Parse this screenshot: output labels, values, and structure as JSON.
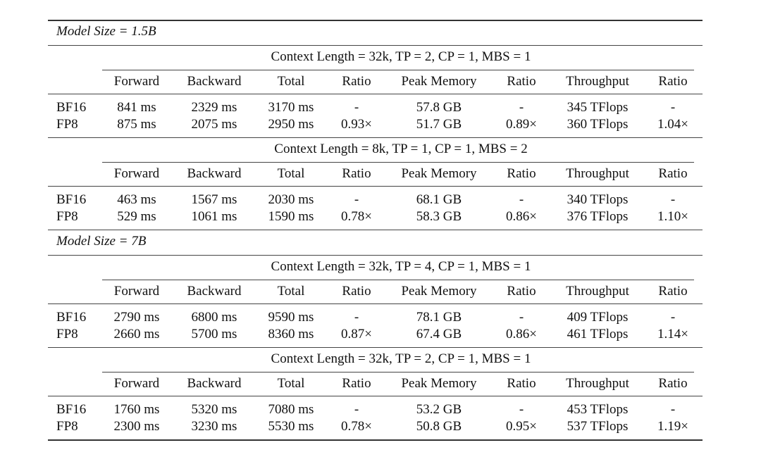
{
  "columns": [
    "Forward",
    "Backward",
    "Total",
    "Ratio",
    "Peak Memory",
    "Ratio",
    "Throughput",
    "Ratio"
  ],
  "groups": [
    {
      "model_size": "Model Size = 1.5B",
      "configs": [
        {
          "context": "Context Length = 32k, TP = 2, CP = 1, MBS = 1",
          "rows": [
            {
              "label": "BF16",
              "cells": [
                "841 ms",
                "2329 ms",
                "3170 ms",
                "-",
                "57.8 GB",
                "-",
                "345 TFlops",
                "-"
              ]
            },
            {
              "label": "FP8",
              "cells": [
                "875 ms",
                "2075 ms",
                "2950 ms",
                "0.93×",
                "51.7 GB",
                "0.89×",
                "360 TFlops",
                "1.04×"
              ]
            }
          ]
        },
        {
          "context": "Context Length = 8k, TP = 1, CP = 1, MBS = 2",
          "rows": [
            {
              "label": "BF16",
              "cells": [
                "463 ms",
                "1567 ms",
                "2030 ms",
                "-",
                "68.1 GB",
                "-",
                "340 TFlops",
                "-"
              ]
            },
            {
              "label": "FP8",
              "cells": [
                "529 ms",
                "1061 ms",
                "1590 ms",
                "0.78×",
                "58.3 GB",
                "0.86×",
                "376 TFlops",
                "1.10×"
              ]
            }
          ]
        }
      ]
    },
    {
      "model_size": "Model Size = 7B",
      "configs": [
        {
          "context": "Context Length = 32k, TP = 4, CP = 1, MBS = 1",
          "rows": [
            {
              "label": "BF16",
              "cells": [
                "2790 ms",
                "6800 ms",
                "9590 ms",
                "-",
                "78.1 GB",
                "-",
                "409 TFlops",
                "-"
              ]
            },
            {
              "label": "FP8",
              "cells": [
                "2660 ms",
                "5700 ms",
                "8360 ms",
                "0.87×",
                "67.4 GB",
                "0.86×",
                "461 TFlops",
                "1.14×"
              ]
            }
          ]
        },
        {
          "context": "Context Length = 32k, TP = 2, CP = 1, MBS = 1",
          "rows": [
            {
              "label": "BF16",
              "cells": [
                "1760 ms",
                "5320 ms",
                "7080 ms",
                "-",
                "53.2 GB",
                "-",
                "453 TFlops",
                "-"
              ]
            },
            {
              "label": "FP8",
              "cells": [
                "2300 ms",
                "3230 ms",
                "5530 ms",
                "0.78×",
                "50.8 GB",
                "0.95×",
                "537 TFlops",
                "1.19×"
              ]
            }
          ]
        }
      ]
    }
  ]
}
